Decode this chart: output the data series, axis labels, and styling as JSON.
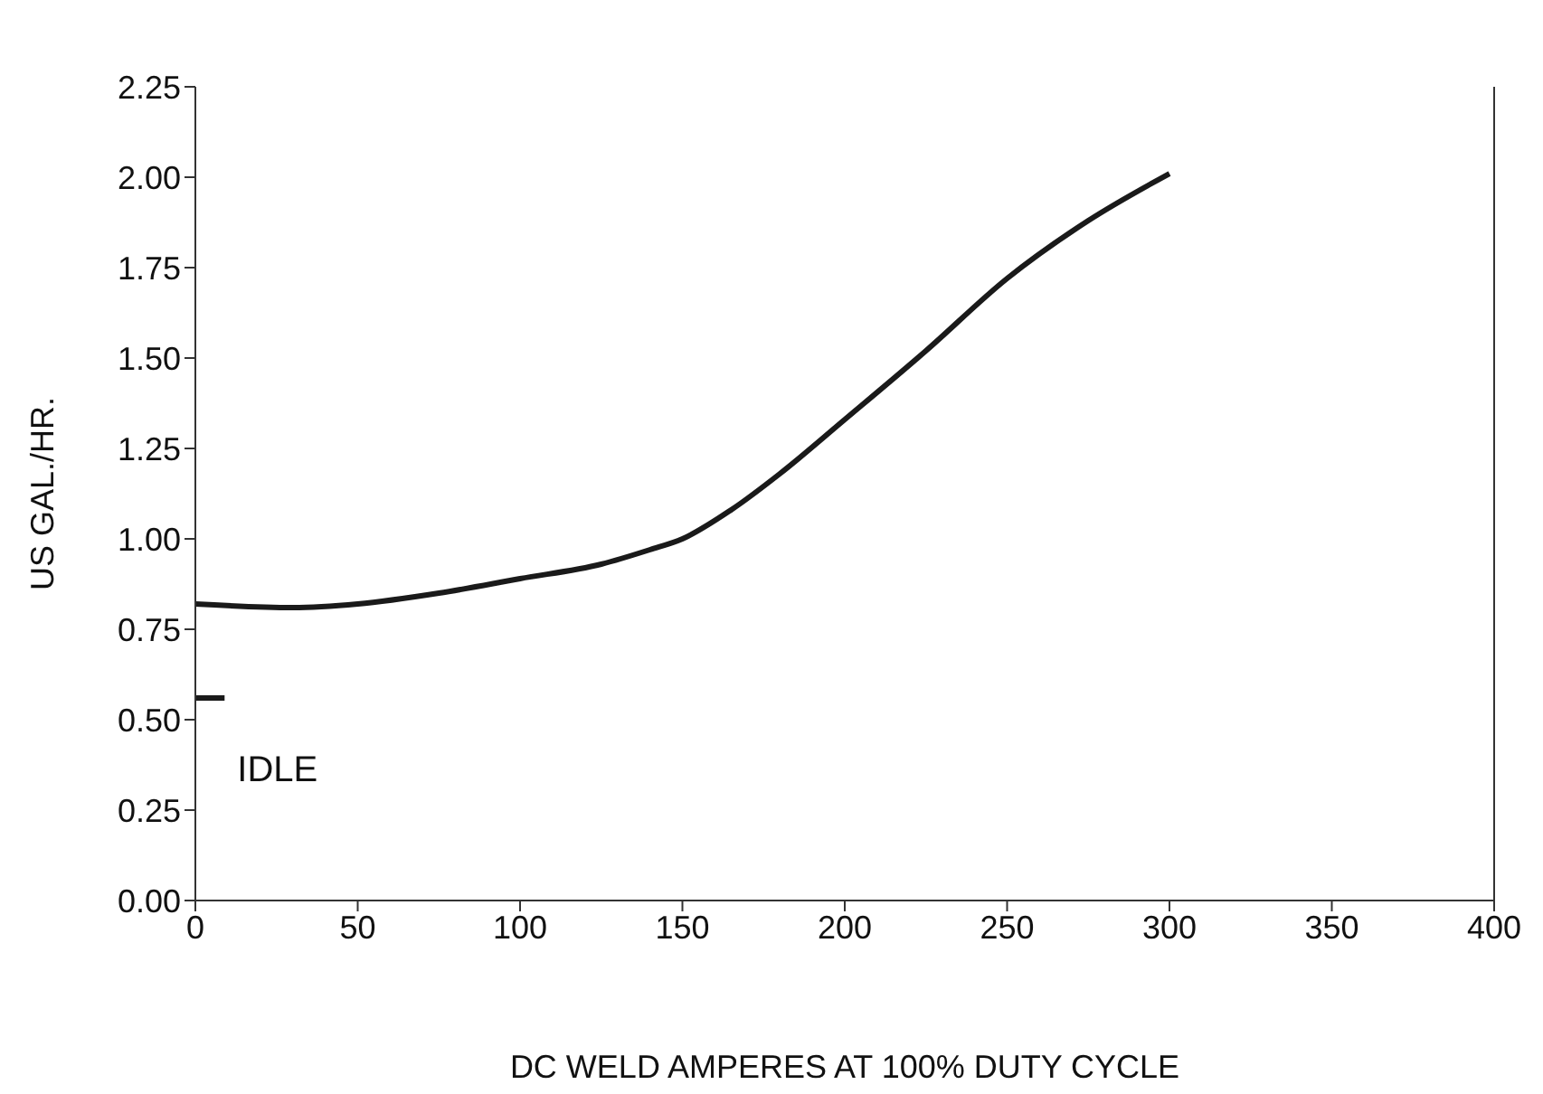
{
  "chart_data": {
    "type": "line",
    "xlabel": "DC WELD AMPERES AT 100% DUTY CYCLE",
    "ylabel": "US GAL./HR.",
    "xlim": [
      0,
      400
    ],
    "xticks": [
      0,
      50,
      100,
      150,
      200,
      250,
      300,
      350,
      400
    ],
    "ylim": [
      0,
      2.25
    ],
    "yticks": [
      {
        "value": 0,
        "label": "0.00"
      },
      {
        "value": 0.25,
        "label": "0.25"
      },
      {
        "value": 0.5,
        "label": "0.50"
      },
      {
        "value": 0.75,
        "label": "0.75"
      },
      {
        "value": 1,
        "label": "1.00"
      },
      {
        "value": 1.25,
        "label": "1.25"
      },
      {
        "value": 1.5,
        "label": "1.50"
      },
      {
        "value": 1.75,
        "label": "1.75"
      },
      {
        "value": 2,
        "label": "2.00"
      },
      {
        "value": 2.25,
        "label": "2.25"
      }
    ],
    "series": [
      {
        "color": "#1a1a1a",
        "x": [
          0,
          30,
          50,
          75,
          100,
          125,
          140,
          150,
          165,
          180,
          200,
          225,
          250,
          275,
          300
        ],
        "values": [
          0.82,
          0.81,
          0.82,
          0.85,
          0.89,
          0.93,
          0.97,
          1.0,
          1.08,
          1.18,
          1.33,
          1.52,
          1.72,
          1.88,
          2.01
        ]
      },
      {
        "color": "#1a1a1a",
        "x": [
          0,
          9
        ],
        "values": [
          0.56,
          0.56
        ]
      }
    ],
    "annotations": [
      {
        "text": "IDLE",
        "x": 4,
        "y": 0.56
      }
    ],
    "marker": "none",
    "line_style": "solid"
  }
}
